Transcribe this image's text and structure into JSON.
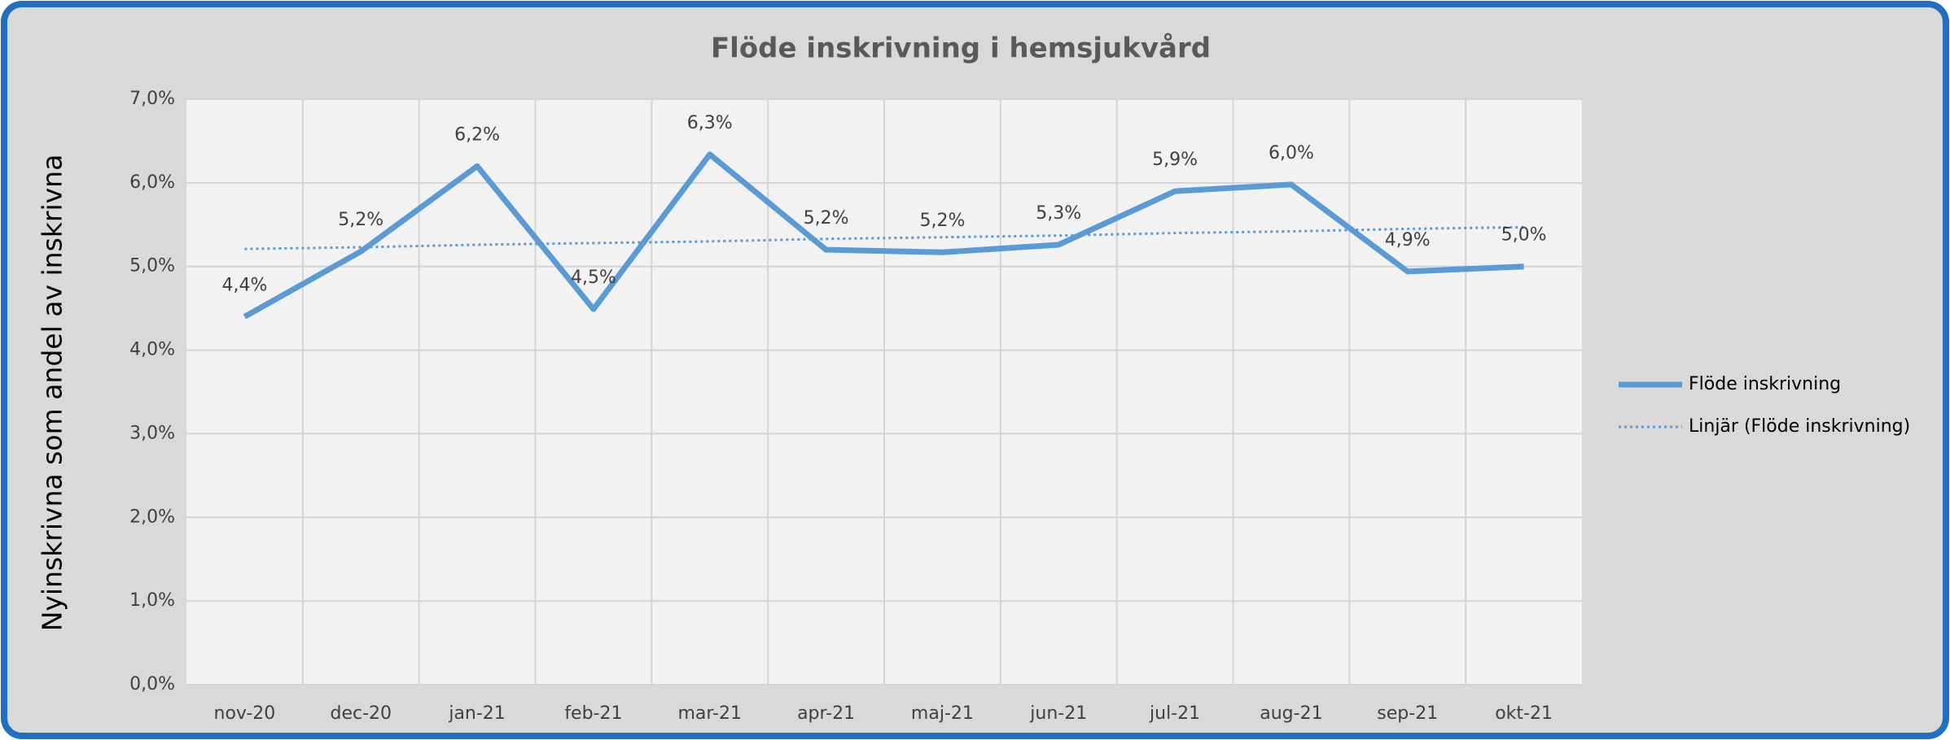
{
  "chart_data": {
    "type": "line",
    "title": "Flöde inskrivning i hemsjukvård",
    "y_label": "Nyinskrivna som andel av inskrivna",
    "categories": [
      "nov-20",
      "dec-20",
      "jan-21",
      "feb-21",
      "mar-21",
      "apr-21",
      "maj-21",
      "jun-21",
      "jul-21",
      "aug-21",
      "sep-21",
      "okt-21"
    ],
    "series": [
      {
        "name": "Flöde inskrivning",
        "color": "#5b9bd5",
        "style": "solid",
        "values": [
          4.4,
          5.18,
          6.2,
          4.49,
          6.34,
          5.2,
          5.17,
          5.26,
          5.9,
          5.98,
          4.94,
          5.0
        ],
        "value_labels": [
          "4,4%",
          "5,2%",
          "6,2%",
          "4,5%",
          "6,3%",
          "5,2%",
          "5,2%",
          "5,3%",
          "5,9%",
          "6,0%",
          "4,9%",
          "5,0%"
        ]
      },
      {
        "name": "Linjär (Flöde inskrivning)",
        "color": "#5b9bd5",
        "style": "dotted",
        "values": [
          5.21,
          5.23,
          5.26,
          5.28,
          5.3,
          5.33,
          5.35,
          5.37,
          5.4,
          5.42,
          5.45,
          5.47
        ]
      }
    ],
    "ylim": [
      0,
      7
    ],
    "yticks": [
      {
        "value": 0,
        "label": "0,0%"
      },
      {
        "value": 1,
        "label": "1,0%"
      },
      {
        "value": 2,
        "label": "2,0%"
      },
      {
        "value": 3,
        "label": "3,0%"
      },
      {
        "value": 4,
        "label": "4,0%"
      },
      {
        "value": 5,
        "label": "5,0%"
      },
      {
        "value": 6,
        "label": "6,0%"
      },
      {
        "value": 7,
        "label": "7,0%"
      }
    ],
    "grid": true,
    "legend": "right"
  }
}
